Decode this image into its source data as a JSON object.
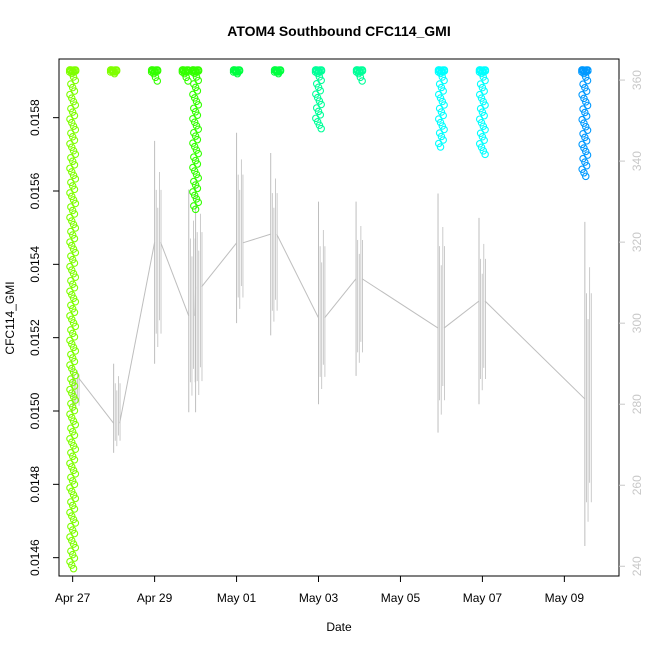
{
  "chart_data": {
    "type": "scatter",
    "title": "ATOM4 Southbound CFC114_GMI",
    "xlabel": "Date",
    "ylabel": "CFC114_GMI",
    "x_ticks": [
      "Apr 27",
      "Apr 29",
      "May 01",
      "May 03",
      "May 05",
      "May 07",
      "May 09"
    ],
    "y_ticks": [
      "0.0146",
      "0.0148",
      "0.0150",
      "0.0152",
      "0.0154",
      "0.0156",
      "0.0158"
    ],
    "y_right_ticks": [
      "240",
      "260",
      "280",
      "300",
      "320",
      "340",
      "360"
    ],
    "xlim": [
      "2018-04-26 16:00",
      "2018-05-10 08:00"
    ],
    "ylim": [
      0.01455,
      0.01596
    ],
    "y_right_lim": [
      237.6,
      365.2
    ],
    "grid": false,
    "series": [
      {
        "color": "#7fff00",
        "points": [
          {
            "x": "2018-04-27 00:00",
            "y": [
              0.01457,
              0.01593
            ]
          },
          {
            "x": "2018-04-28 00:00",
            "y": [
              0.01592,
              0.01593
            ]
          }
        ]
      },
      {
        "color": "#33ff00",
        "points": [
          {
            "x": "2018-04-29 00:00",
            "y": [
              0.0159,
              0.01593
            ]
          },
          {
            "x": "2018-04-29 18:00",
            "y": [
              0.0159,
              0.01593
            ]
          },
          {
            "x": "2018-04-30 00:00",
            "y": [
              0.01555,
              0.01593
            ]
          }
        ]
      },
      {
        "color": "#00ff40",
        "points": [
          {
            "x": "2018-05-01 00:00",
            "y": [
              0.01592,
              0.01593
            ]
          },
          {
            "x": "2018-05-02 00:00",
            "y": [
              0.01592,
              0.01593
            ]
          }
        ]
      },
      {
        "color": "#00ff99",
        "points": [
          {
            "x": "2018-05-03 00:00",
            "y": [
              0.01577,
              0.01593
            ]
          },
          {
            "x": "2018-05-04 00:00",
            "y": [
              0.0159,
              0.01593
            ]
          }
        ]
      },
      {
        "color": "#00ffff",
        "points": [
          {
            "x": "2018-05-06 00:00",
            "y": [
              0.01572,
              0.01593
            ]
          },
          {
            "x": "2018-05-07 00:00",
            "y": [
              0.0157,
              0.01593
            ]
          }
        ]
      },
      {
        "color": "#0099ff",
        "points": [
          {
            "x": "2018-05-09 12:00",
            "y": [
              0.01564,
              0.01593
            ]
          }
        ]
      }
    ],
    "secondary_line": {
      "color": "#bebebe",
      "axis": "right",
      "segments": [
        {
          "x": "2018-04-27 00:00",
          "y": [
            278,
            290
          ]
        },
        {
          "x": "2018-04-28 00:00",
          "y": [
            268,
            290
          ]
        },
        {
          "x": "2018-04-29 00:00",
          "y": [
            290,
            345
          ]
        },
        {
          "x": "2018-04-29 20:00",
          "y": [
            278,
            333
          ]
        },
        {
          "x": "2018-04-30 00:00",
          "y": [
            278,
            335
          ]
        },
        {
          "x": "2018-05-01 00:00",
          "y": [
            300,
            347
          ]
        },
        {
          "x": "2018-05-01 20:00",
          "y": [
            297,
            342
          ]
        },
        {
          "x": "2018-05-03 00:00",
          "y": [
            280,
            330
          ]
        },
        {
          "x": "2018-05-03 22:00",
          "y": [
            287,
            330
          ]
        },
        {
          "x": "2018-05-05 22:00",
          "y": [
            273,
            332
          ]
        },
        {
          "x": "2018-05-06 22:00",
          "y": [
            280,
            326
          ]
        },
        {
          "x": "2018-05-09 12:00",
          "y": [
            245,
            325
          ]
        }
      ]
    }
  }
}
